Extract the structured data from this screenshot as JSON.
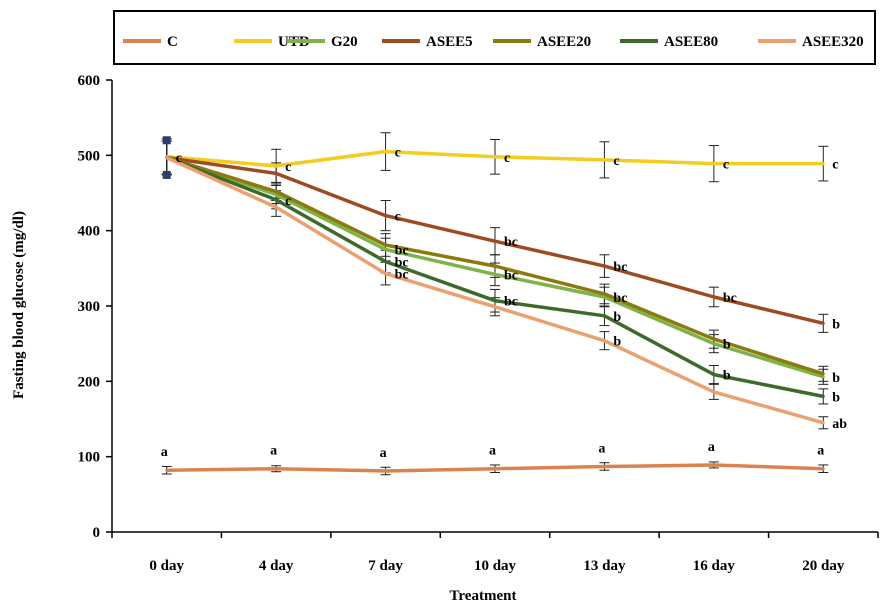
{
  "chart_data": {
    "type": "line",
    "xlabel": "Treatment",
    "ylabel": "Fasting blood glucose (mg/dl)",
    "ylim": [
      0,
      600
    ],
    "yticks": [
      0,
      100,
      200,
      300,
      400,
      500,
      600
    ],
    "grid": false,
    "legend_position": "top",
    "categories": [
      "0 day",
      "4 day",
      "7 day",
      "10 day",
      "13 day",
      "16 day",
      "20 day"
    ],
    "series": [
      {
        "name": "C",
        "color": "#D9834F",
        "values": [
          82,
          84,
          81,
          84,
          87,
          89,
          84
        ],
        "errors": [
          5,
          4,
          5,
          5,
          5,
          4,
          5
        ],
        "labels": [
          "a",
          "a",
          "a",
          "a",
          "a",
          "a",
          "a"
        ]
      },
      {
        "name": "UTD",
        "color": "#F2CC1E",
        "values": [
          498,
          486,
          505,
          498,
          494,
          489,
          489
        ],
        "errors": [
          24,
          22,
          25,
          23,
          24,
          24,
          23
        ],
        "labels": [
          "c",
          "c",
          "c",
          "c",
          "c",
          "c",
          "c"
        ]
      },
      {
        "name": "G20",
        "color": "#7FB24A",
        "values": [
          497,
          448,
          375,
          342,
          312,
          250,
          206
        ],
        "errors": [
          22,
          12,
          15,
          15,
          13,
          12,
          10
        ],
        "labels": [
          "",
          "",
          "bc",
          "bc",
          "bc",
          "b",
          "b"
        ]
      },
      {
        "name": "ASEE5",
        "color": "#9C4B22",
        "values": [
          497,
          476,
          420,
          386,
          353,
          312,
          277
        ],
        "errors": [
          22,
          14,
          20,
          18,
          15,
          13,
          12
        ],
        "labels": [
          "",
          "",
          "c",
          "bc",
          "bc",
          "bc",
          "b"
        ]
      },
      {
        "name": "ASEE20",
        "color": "#8A7A0F",
        "values": [
          497,
          452,
          381,
          353,
          316,
          256,
          210
        ],
        "errors": [
          22,
          12,
          15,
          15,
          13,
          12,
          10
        ],
        "labels": [
          "",
          "",
          "",
          "",
          "",
          "",
          ""
        ]
      },
      {
        "name": "ASEE80",
        "color": "#3D6A2A",
        "values": [
          497,
          441,
          359,
          307,
          287,
          209,
          180
        ],
        "errors": [
          22,
          12,
          15,
          15,
          13,
          12,
          10
        ],
        "labels": [
          "",
          "c",
          "bc",
          "bc",
          "b",
          "b",
          "b"
        ]
      },
      {
        "name": "ASEE320",
        "color": "#EAA070",
        "values": [
          497,
          431,
          343,
          299,
          254,
          186,
          145
        ],
        "errors": [
          22,
          12,
          15,
          12,
          12,
          10,
          8
        ],
        "labels": [
          "",
          "",
          "bc",
          "",
          "b",
          "",
          "ab"
        ]
      }
    ]
  }
}
